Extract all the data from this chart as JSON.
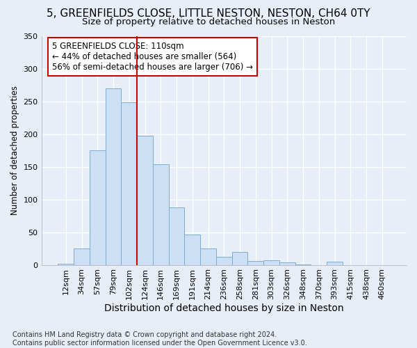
{
  "title": "5, GREENFIELDS CLOSE, LITTLE NESTON, NESTON, CH64 0TY",
  "subtitle": "Size of property relative to detached houses in Neston",
  "xlabel": "Distribution of detached houses by size in Neston",
  "ylabel": "Number of detached properties",
  "categories": [
    "12sqm",
    "34sqm",
    "57sqm",
    "79sqm",
    "102sqm",
    "124sqm",
    "146sqm",
    "169sqm",
    "191sqm",
    "214sqm",
    "236sqm",
    "258sqm",
    "281sqm",
    "303sqm",
    "326sqm",
    "348sqm",
    "370sqm",
    "393sqm",
    "415sqm",
    "438sqm",
    "460sqm"
  ],
  "values": [
    2,
    25,
    175,
    270,
    248,
    197,
    154,
    88,
    46,
    25,
    12,
    20,
    6,
    7,
    4,
    1,
    0,
    5,
    0,
    0,
    0
  ],
  "bar_color": "#ccdff5",
  "bar_edge_color": "#7badd4",
  "vline_color": "#cc0000",
  "annotation_text": "5 GREENFIELDS CLOSE: 110sqm\n← 44% of detached houses are smaller (564)\n56% of semi-detached houses are larger (706) →",
  "annotation_box_color": "white",
  "annotation_box_edge": "#cc0000",
  "title_fontsize": 11,
  "subtitle_fontsize": 9.5,
  "xlabel_fontsize": 10,
  "ylabel_fontsize": 8.5,
  "tick_fontsize": 8,
  "annotation_fontsize": 8.5,
  "footnote": "Contains HM Land Registry data © Crown copyright and database right 2024.\nContains public sector information licensed under the Open Government Licence v3.0.",
  "footnote_fontsize": 7,
  "background_color": "#e8eef8",
  "ylim": [
    0,
    350
  ],
  "yticks": [
    0,
    50,
    100,
    150,
    200,
    250,
    300,
    350
  ]
}
